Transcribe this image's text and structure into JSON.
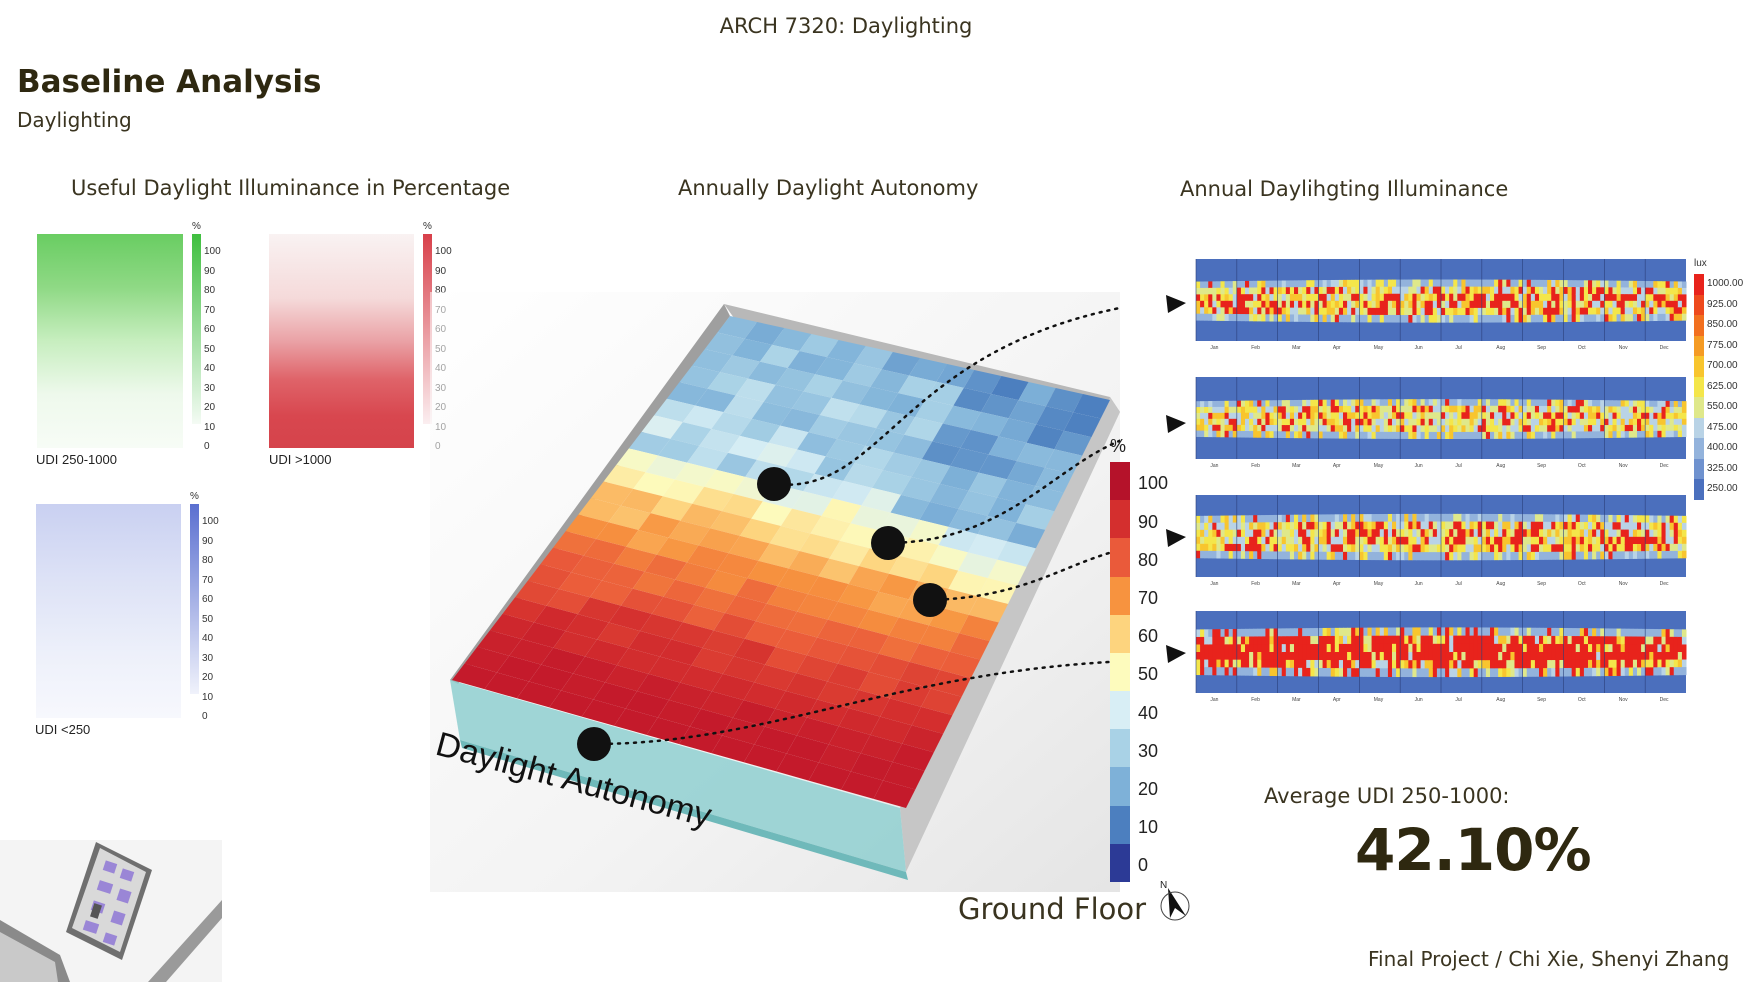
{
  "header": {
    "course": "ARCH 7320: Daylighting"
  },
  "page": {
    "title": "Baseline Analysis",
    "subtitle": "Daylighting"
  },
  "sections": {
    "udi_title": "Useful Daylight Illuminance in Percentage",
    "da_title": "Annually Daylight Autonomy",
    "illum_title": "Annual Daylihgting Illuminance"
  },
  "udi_panels": [
    {
      "label": "UDI 250-1000",
      "unit": "%",
      "color": "#3fbf3f",
      "ticks": [
        "100",
        "90",
        "80",
        "70",
        "60",
        "50",
        "40",
        "30",
        "20",
        "10",
        "0"
      ]
    },
    {
      "label": "UDI >1000",
      "unit": "%",
      "color": "#d8404a",
      "ticks": [
        "100",
        "90",
        "80",
        "70",
        "60",
        "50",
        "40",
        "30",
        "20",
        "10",
        "0"
      ]
    },
    {
      "label": "UDI <250",
      "unit": "%",
      "color": "#5a6fd0",
      "ticks": [
        "100",
        "90",
        "80",
        "70",
        "60",
        "50",
        "40",
        "30",
        "20",
        "10",
        "0"
      ]
    }
  ],
  "da": {
    "model_label": "Daylight Autonomy",
    "legend_unit": "%",
    "legend_ticks": [
      "100",
      "90",
      "80",
      "70",
      "60",
      "50",
      "40",
      "30",
      "20",
      "10",
      "0"
    ],
    "legend_colors": [
      "#b5122a",
      "#d42f2e",
      "#ea5a3a",
      "#f7933f",
      "#fdd47e",
      "#fdfbbd",
      "#d8eef5",
      "#a9d2e6",
      "#7eb1d8",
      "#4c7fbf",
      "#2c3a96"
    ],
    "floor_label": "Ground Floor",
    "compass": "N"
  },
  "illuminance": {
    "unit": "lux",
    "months": [
      "Jan",
      "Feb",
      "Mar",
      "Apr",
      "May",
      "Jun",
      "Jul",
      "Aug",
      "Sep",
      "Oct",
      "Nov",
      "Dec"
    ],
    "legend_ticks": [
      "1000.00",
      "925.00",
      "850.00",
      "775.00",
      "700.00",
      "625.00",
      "550.00",
      "475.00",
      "400.00",
      "325.00",
      "250.00"
    ],
    "legend_colors": [
      "#e8231c",
      "#ee4a1d",
      "#f2701f",
      "#f59b24",
      "#f8c52e",
      "#f4e64a",
      "#dfe88a",
      "#b9d3e6",
      "#93b3dc",
      "#6f92cf",
      "#4b70be"
    ]
  },
  "summary": {
    "label": "Average UDI 250-1000:",
    "value": "42.10%"
  },
  "footer": {
    "credits": "Final Project / Chi Xie, Shenyi Zhang"
  }
}
